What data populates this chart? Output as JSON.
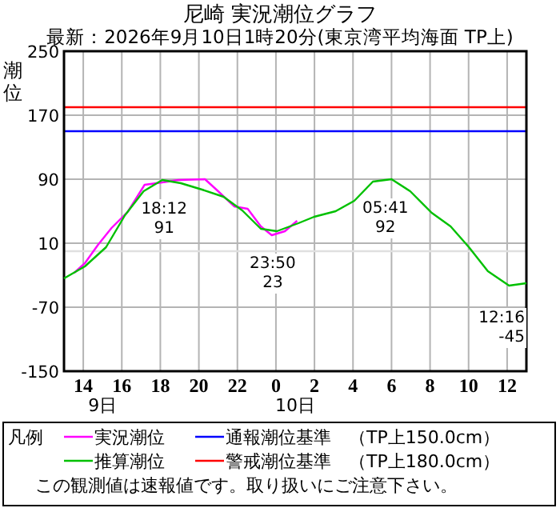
{
  "chart_data": {
    "type": "line",
    "title": "尼崎 実況潮位グラフ",
    "subtitle": "最新：2026年9月10日1時20分(東京湾平均海面 TP上)",
    "ylabel": "潮位",
    "legend_title": "凡例",
    "xlim": [
      "2026-09-09T13:00",
      "2026-09-10T13:00"
    ],
    "xticks": [
      {
        "value": "2026-09-09T14:00",
        "label": "14"
      },
      {
        "value": "2026-09-09T16:00",
        "label": "16"
      },
      {
        "value": "2026-09-09T18:00",
        "label": "18"
      },
      {
        "value": "2026-09-09T20:00",
        "label": "20"
      },
      {
        "value": "2026-09-09T22:00",
        "label": "22"
      },
      {
        "value": "2026-09-10T00:00",
        "label": "0"
      },
      {
        "value": "2026-09-10T02:00",
        "label": "2"
      },
      {
        "value": "2026-09-10T04:00",
        "label": "4"
      },
      {
        "value": "2026-09-10T06:00",
        "label": "6"
      },
      {
        "value": "2026-09-10T08:00",
        "label": "8"
      },
      {
        "value": "2026-09-10T10:00",
        "label": "10"
      },
      {
        "value": "2026-09-10T12:00",
        "label": "12"
      }
    ],
    "x2lim": [
      "2026-09-09T13:00",
      "2026-09-10T13:00"
    ],
    "x2ticks": [
      {
        "value": "2026-09-09T15:00",
        "label": "9日"
      },
      {
        "value": "2026-09-10T01:00",
        "label": "10日"
      }
    ],
    "ylim": [
      -150,
      250
    ],
    "yticks": [
      -150,
      -70,
      10,
      90,
      170,
      250
    ],
    "grid": true,
    "legend": "bottom",
    "marker": "none",
    "line_style": "solid",
    "series": [
      {
        "name": "実況潮位",
        "color": "#ff00ff",
        "x": [
          "2026-09-09T13:32",
          "2026-09-09T14:05",
          "2026-09-09T14:46",
          "2026-09-09T15:28",
          "2026-09-09T16:18",
          "2026-09-09T17:11",
          "2026-09-09T18:06",
          "2026-09-09T18:56",
          "2026-09-09T20:19",
          "2026-09-09T21:00",
          "2026-09-09T21:50",
          "2026-09-09T22:32",
          "2026-09-09T23:13",
          "2026-09-09T23:47",
          "2026-09-10T00:28",
          "2026-09-10T01:06"
        ],
        "values": [
          -27,
          -15,
          8,
          29,
          49,
          83,
          86,
          89,
          90,
          75,
          56,
          53,
          31,
          20,
          25,
          38
        ]
      },
      {
        "name": "推算潮位",
        "color": "#00c000",
        "x": [
          "2026-09-09T13:00",
          "2026-09-09T14:05",
          "2026-09-09T15:11",
          "2026-09-09T16:10",
          "2026-09-09T17:08",
          "2026-09-09T18:06",
          "2026-09-09T19:04",
          "2026-09-09T20:10",
          "2026-09-09T21:17",
          "2026-09-09T22:15",
          "2026-09-09T23:13",
          "2026-09-10T00:03",
          "2026-09-10T01:10",
          "2026-09-10T01:59",
          "2026-09-10T03:06",
          "2026-09-10T04:04",
          "2026-09-10T05:02",
          "2026-09-10T06:00",
          "2026-09-10T06:58",
          "2026-09-10T08:05",
          "2026-09-10T09:04",
          "2026-09-10T10:01",
          "2026-09-10T11:00",
          "2026-09-10T12:06",
          "2026-09-10T13:00"
        ],
        "values": [
          -34,
          -19,
          5,
          45,
          75,
          89,
          85,
          77,
          68,
          51,
          28,
          25,
          35,
          43,
          50,
          63,
          87,
          90,
          75,
          48,
          31,
          5,
          -25,
          -43,
          -40
        ]
      }
    ],
    "ref_lines": [
      {
        "axis": "y",
        "value": 150,
        "label": "通報潮位基準　（TP上150.0cm）",
        "color": "#0000ff"
      },
      {
        "axis": "y",
        "value": 180,
        "label": "警戒潮位基準　（TP上180.0cm）",
        "color": "#ff0000"
      },
      {
        "axis": "y",
        "value": 0,
        "color": "#e0e0e0"
      }
    ],
    "annotations": [
      {
        "text": "18:12\n91",
        "x": "2026-09-09T18:12",
        "y": 91
      },
      {
        "text": "23:50\n23",
        "x": "2026-09-09T23:50",
        "y": 23
      },
      {
        "text": "05:41\n92",
        "x": "2026-09-10T05:41",
        "y": 92
      },
      {
        "text": "12:16\n-45",
        "x": "2026-09-10T12:16",
        "y": -45
      },
      "この観測値は速報値です。取り扱いにご注意下さい。"
    ]
  }
}
